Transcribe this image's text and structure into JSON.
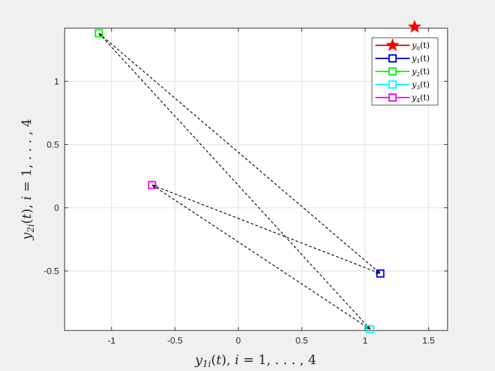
{
  "chart_data": {
    "type": "scatter",
    "title": "",
    "xlabel": "y_{1i}(t), i = 1, ..., 4",
    "ylabel": "y_{2i}(t), i = 1, ..., 4",
    "xlim": [
      -1.37,
      1.65
    ],
    "ylim": [
      -0.97,
      1.42
    ],
    "xticks": [
      -1,
      -0.5,
      0,
      0.5,
      1,
      1.5
    ],
    "xtick_labels": [
      "-1",
      "-0.5",
      "0",
      "0.5",
      "1",
      "1.5"
    ],
    "yticks": [
      -0.5,
      0,
      0.5,
      1
    ],
    "ytick_labels": [
      "-0.5",
      "0",
      "0.5",
      "1"
    ],
    "grid": true,
    "legend_position": "top-right",
    "series": [
      {
        "name": "y_0(t)",
        "marker": "star",
        "color": "#ff0000",
        "x": [
          1.39
        ],
        "y": [
          1.43
        ]
      },
      {
        "name": "y_1(t)",
        "marker": "square",
        "color": "#0000ff",
        "x": [
          1.12
        ],
        "y": [
          -0.52
        ]
      },
      {
        "name": "y_2(t)",
        "marker": "square",
        "color": "#00ff00",
        "x": [
          -1.1
        ],
        "y": [
          1.38
        ]
      },
      {
        "name": "y_3(t)",
        "marker": "square",
        "color": "#00ffff",
        "x": [
          1.04
        ],
        "y": [
          -0.96
        ]
      },
      {
        "name": "y_4(t)",
        "marker": "square",
        "color": "#ff00ff",
        "x": [
          -0.68
        ],
        "y": [
          0.18
        ]
      }
    ],
    "connections": [
      {
        "from": "y_2(t)",
        "to": "y_1(t)"
      },
      {
        "from": "y_2(t)",
        "to": "y_3(t)"
      },
      {
        "from": "y_4(t)",
        "to": "y_1(t)"
      },
      {
        "from": "y_4(t)",
        "to": "y_3(t)"
      }
    ],
    "legend": {
      "entries": [
        {
          "series": "y_0(t)",
          "base": "y",
          "sub": "0",
          "suffix": "(t)"
        },
        {
          "series": "y_1(t)",
          "base": "y",
          "sub": "1",
          "suffix": "(t)"
        },
        {
          "series": "y_2(t)",
          "base": "y",
          "sub": "2",
          "suffix": "(t)"
        },
        {
          "series": "y_3(t)",
          "base": "y",
          "sub": "3",
          "suffix": "(t)"
        },
        {
          "series": "y_4(t)",
          "base": "y",
          "sub": "4",
          "suffix": "(t)"
        }
      ]
    }
  }
}
